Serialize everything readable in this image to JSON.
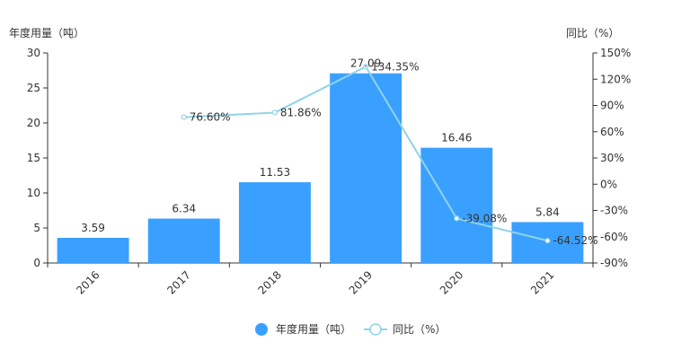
{
  "chart_data": {
    "type": "bar",
    "categories": [
      "2016",
      "2017",
      "2018",
      "2019",
      "2020",
      "2021"
    ],
    "series": [
      {
        "name": "年度用量（吨）",
        "type": "bar",
        "axis": "left",
        "values": [
          3.59,
          6.34,
          11.53,
          27.09,
          16.46,
          5.84
        ],
        "labels": [
          "3.59",
          "6.34",
          "11.53",
          "27.09",
          "16.46",
          "5.84"
        ],
        "color": "#3aa0ff"
      },
      {
        "name": "同比（%）",
        "type": "line",
        "axis": "right",
        "values": [
          null,
          76.6,
          81.86,
          134.35,
          -39.08,
          -64.52
        ],
        "labels": [
          "",
          "76.60%",
          "81.86%",
          "134.35%",
          "-39.08%",
          "-64.52%"
        ],
        "color": "#8fd3e8"
      }
    ],
    "y_left": {
      "name": "年度用量（吨）",
      "ylim": [
        0,
        30
      ],
      "ticks": [
        0,
        5,
        10,
        15,
        20,
        25,
        30
      ],
      "tick_labels": [
        "0",
        "5",
        "10",
        "15",
        "20",
        "25",
        "30"
      ]
    },
    "y_right": {
      "name": "同比（%）",
      "ylim": [
        -90,
        150
      ],
      "ticks": [
        -90,
        -60,
        -30,
        0,
        30,
        60,
        90,
        120,
        150
      ],
      "tick_labels": [
        "-90%",
        "-60%",
        "-30%",
        "0%",
        "30%",
        "60%",
        "90%",
        "120%",
        "150%"
      ]
    },
    "grid": false,
    "legend_position": "bottom"
  }
}
